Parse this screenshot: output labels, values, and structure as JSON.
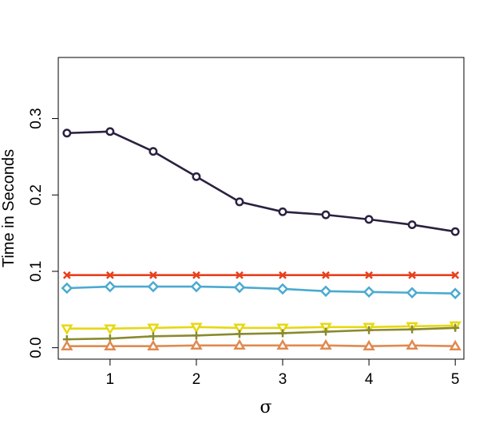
{
  "chart_data": {
    "type": "line",
    "title": "",
    "xlabel": "σ",
    "ylabel": "Time in Seconds",
    "xlim": [
      0.4,
      5.1
    ],
    "ylim": [
      -0.015,
      0.38
    ],
    "xticks": [
      1,
      2,
      3,
      4,
      5
    ],
    "yticks": [
      0.0,
      0.1,
      0.2,
      0.3
    ],
    "ytick_labels": [
      "0.0",
      "0.1",
      "0.2",
      "0.3"
    ],
    "grid": false,
    "x": [
      0.5,
      1.0,
      1.5,
      2.0,
      2.5,
      3.0,
      3.5,
      4.0,
      4.5,
      5.0
    ],
    "series": [
      {
        "color": "#2b2140",
        "marker": "circle",
        "values": [
          0.281,
          0.283,
          0.257,
          0.224,
          0.191,
          0.178,
          0.174,
          0.168,
          0.161,
          0.152
        ]
      },
      {
        "color": "#e8401c",
        "marker": "x",
        "values": [
          0.095,
          0.095,
          0.095,
          0.095,
          0.095,
          0.095,
          0.095,
          0.095,
          0.095,
          0.095
        ]
      },
      {
        "color": "#4aaad0",
        "marker": "diamond",
        "values": [
          0.078,
          0.08,
          0.08,
          0.08,
          0.079,
          0.077,
          0.074,
          0.073,
          0.072,
          0.071
        ]
      },
      {
        "color": "#e6d812",
        "marker": "triangle-down",
        "values": [
          0.025,
          0.025,
          0.026,
          0.027,
          0.026,
          0.026,
          0.027,
          0.027,
          0.028,
          0.029
        ]
      },
      {
        "color": "#8a8a30",
        "marker": "plus",
        "values": [
          0.011,
          0.012,
          0.015,
          0.016,
          0.018,
          0.019,
          0.021,
          0.023,
          0.024,
          0.026
        ]
      },
      {
        "color": "#e08a50",
        "marker": "triangle-up",
        "values": [
          0.002,
          0.002,
          0.002,
          0.003,
          0.003,
          0.003,
          0.003,
          0.002,
          0.003,
          0.002
        ]
      }
    ]
  }
}
